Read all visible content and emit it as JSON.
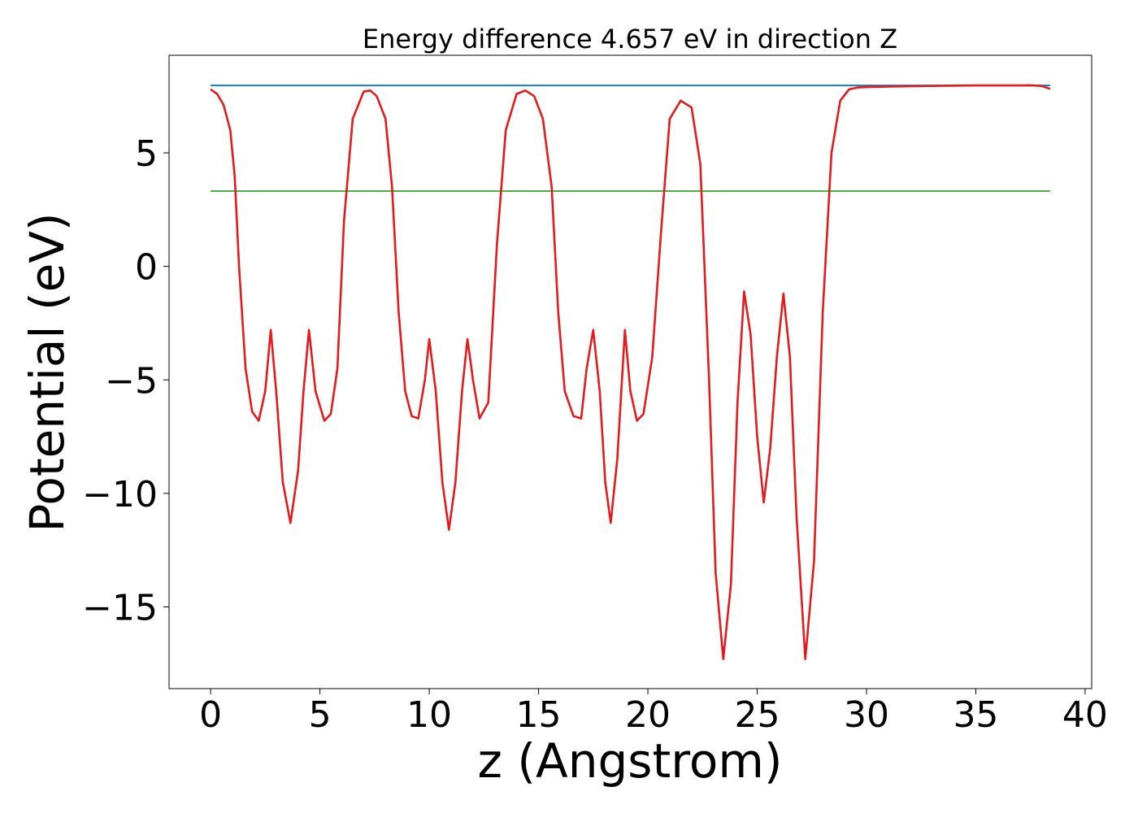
{
  "chart_data": {
    "type": "line",
    "title": "Energy difference 4.657 eV in direction Z",
    "xlabel": "z (Angstrom)",
    "ylabel": "Potential (eV)",
    "xlim": [
      -1.9,
      40.3
    ],
    "ylim": [
      -18.6,
      9.3
    ],
    "xticks": [
      0,
      5,
      10,
      15,
      20,
      25,
      30,
      35,
      40
    ],
    "xtick_labels": [
      "0",
      "5",
      "10",
      "15",
      "20",
      "25",
      "30",
      "35",
      "40"
    ],
    "yticks": [
      5,
      0,
      -5,
      -10,
      -15
    ],
    "ytick_labels": [
      "5",
      "0",
      "−5",
      "−10",
      "−15"
    ],
    "grid": false,
    "series": [
      {
        "color": "#1f77b4",
        "x": [
          0,
          38.4
        ],
        "y": [
          7.97,
          7.97
        ]
      },
      {
        "color": "#4daf4a",
        "x": [
          0,
          38.4
        ],
        "y": [
          3.32,
          3.32
        ]
      },
      {
        "color": "#e41a1c",
        "x": [
          0,
          0.3,
          0.6,
          0.9,
          1.1,
          1.3,
          1.6,
          1.9,
          2.2,
          2.5,
          2.75,
          3.0,
          3.3,
          3.65,
          4.0,
          4.25,
          4.5,
          4.8,
          5.2,
          5.5,
          5.8,
          6.1,
          6.5,
          7.0,
          7.3,
          7.6,
          8.0,
          8.3,
          8.6,
          8.9,
          9.2,
          9.5,
          9.8,
          10.0,
          10.3,
          10.6,
          10.9,
          11.2,
          11.5,
          11.75,
          12.0,
          12.3,
          12.7,
          13.1,
          13.5,
          14.0,
          14.4,
          14.8,
          15.2,
          15.6,
          15.9,
          16.2,
          16.6,
          16.95,
          17.2,
          17.5,
          17.8,
          18.05,
          18.3,
          18.6,
          18.95,
          19.2,
          19.5,
          19.8,
          20.2,
          20.6,
          21.0,
          21.5,
          22.0,
          22.4,
          22.8,
          23.1,
          23.45,
          23.8,
          24.1,
          24.4,
          24.7,
          25.0,
          25.3,
          25.6,
          25.9,
          26.2,
          26.5,
          26.8,
          27.2,
          27.6,
          28.0,
          28.4,
          28.8,
          29.2,
          29.6,
          30.0,
          31.0,
          33.0,
          35.0,
          37.0,
          37.5,
          38.0,
          38.4
        ],
        "y": [
          7.8,
          7.6,
          7.1,
          6.0,
          4.0,
          0.0,
          -4.5,
          -6.4,
          -6.8,
          -5.5,
          -2.8,
          -5.5,
          -9.5,
          -11.3,
          -9.0,
          -5.5,
          -2.8,
          -5.5,
          -6.8,
          -6.5,
          -4.5,
          2.0,
          6.5,
          7.7,
          7.75,
          7.5,
          6.5,
          3.5,
          -2.0,
          -5.5,
          -6.6,
          -6.7,
          -5.0,
          -3.2,
          -5.5,
          -9.5,
          -11.6,
          -9.5,
          -5.5,
          -3.2,
          -5.0,
          -6.7,
          -6.0,
          1.0,
          6.0,
          7.6,
          7.75,
          7.5,
          6.5,
          3.5,
          -2.0,
          -5.5,
          -6.6,
          -6.7,
          -4.5,
          -2.8,
          -5.5,
          -9.5,
          -11.3,
          -8.5,
          -2.8,
          -5.5,
          -6.8,
          -6.5,
          -4.0,
          1.5,
          6.5,
          7.3,
          7.0,
          4.5,
          -5.0,
          -13.5,
          -17.3,
          -14.0,
          -6.0,
          -1.1,
          -3.0,
          -7.5,
          -10.4,
          -8.0,
          -4.0,
          -1.2,
          -4.0,
          -11.0,
          -17.3,
          -13.0,
          -2.0,
          5.0,
          7.3,
          7.8,
          7.88,
          7.9,
          7.92,
          7.95,
          7.97,
          7.97,
          7.98,
          7.95,
          7.82
        ]
      }
    ]
  }
}
